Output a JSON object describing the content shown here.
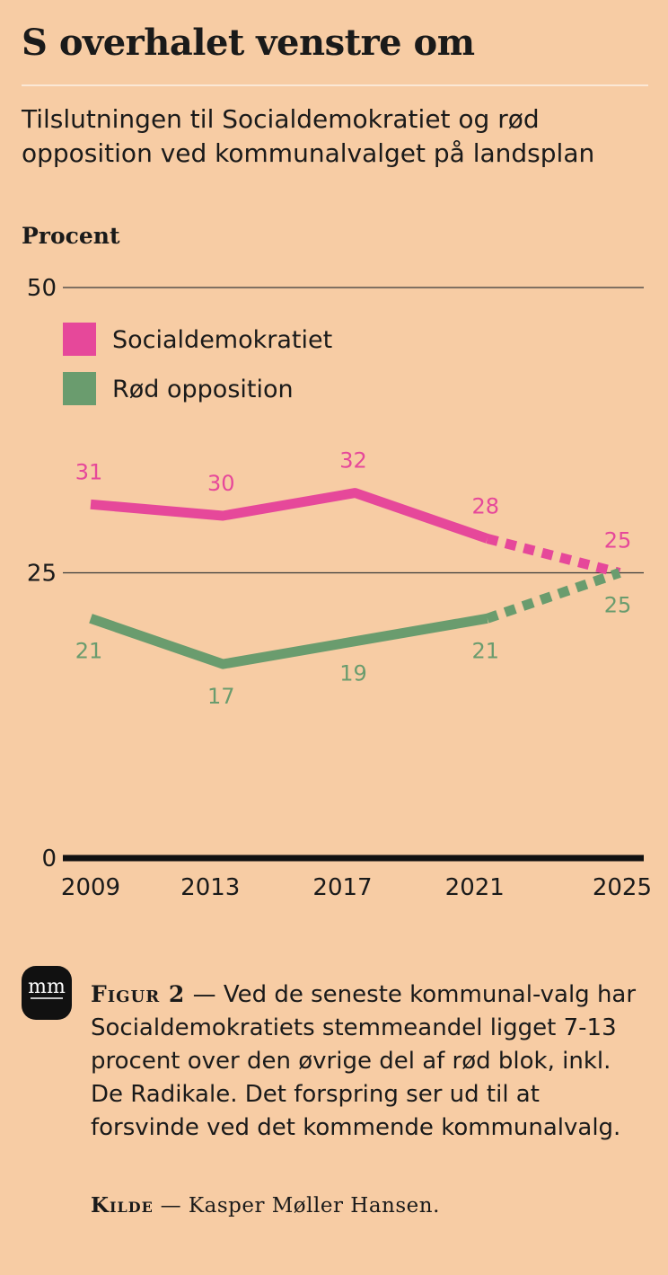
{
  "title": "S overhalet venstre om",
  "subtitle": "Tilslutningen til Socialdemokratiet og rød opposition ved kommunalvalget på landsplan",
  "chart_data": {
    "type": "line",
    "ylabel": "Procent",
    "ylim": [
      0,
      50
    ],
    "yticks": [
      0,
      25,
      50
    ],
    "x": [
      "2009",
      "2013",
      "2017",
      "2021",
      "2025"
    ],
    "projected_from_index": 3,
    "series": [
      {
        "name": "Socialdemokratiet",
        "color": "#e6489a",
        "values": [
          31,
          30,
          32,
          28,
          25
        ],
        "labels": [
          "31",
          "30",
          "32",
          "28",
          "25"
        ]
      },
      {
        "name": "Rød opposition",
        "color": "#6a9c6e",
        "values": [
          21,
          17,
          19,
          21,
          25
        ],
        "labels": [
          "21",
          "17",
          "19",
          "21",
          "25"
        ]
      }
    ],
    "legend": "top-left"
  },
  "caption": {
    "head": "Figur 2",
    "dash": "—",
    "text": "Ved de seneste kommunal-valg har Socialdemokratiets stemmeandel ligget 7-13 procent over den øvrige del af rød blok, inkl. De Radikale. Det forspring ser ud til at forsvinde ved det kommende kommunalvalg."
  },
  "source": {
    "head": "Kilde",
    "dash": "—",
    "text": "Kasper Møller Hansen."
  },
  "logo": {
    "text": "mm",
    "icon": "publisher-logo-icon"
  }
}
